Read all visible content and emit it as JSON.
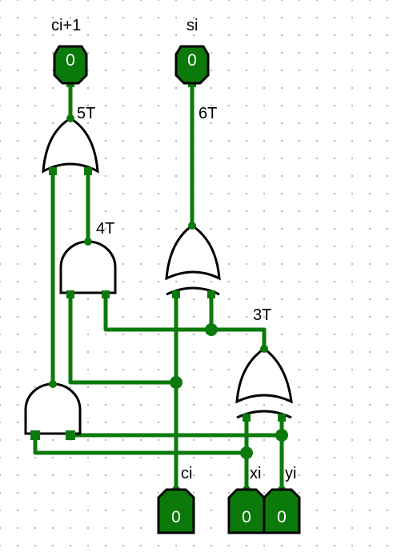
{
  "outputs": [
    {
      "label": "ci+1",
      "value": "0"
    },
    {
      "label": "si",
      "value": "0"
    }
  ],
  "inputs": [
    {
      "label": "ci",
      "value": "0"
    },
    {
      "label": "xi",
      "value": "0"
    },
    {
      "label": "yi",
      "value": "0"
    }
  ],
  "timing_labels": {
    "or_out": "5T",
    "xor_out": "6T",
    "and_top": "4T",
    "xor_mid": "3T"
  },
  "colors": {
    "wire": "#0b7a0b",
    "pin_fill": "#0b7a0b",
    "gate_stroke": "#000000",
    "grid_dot": "#9a9a9a"
  }
}
